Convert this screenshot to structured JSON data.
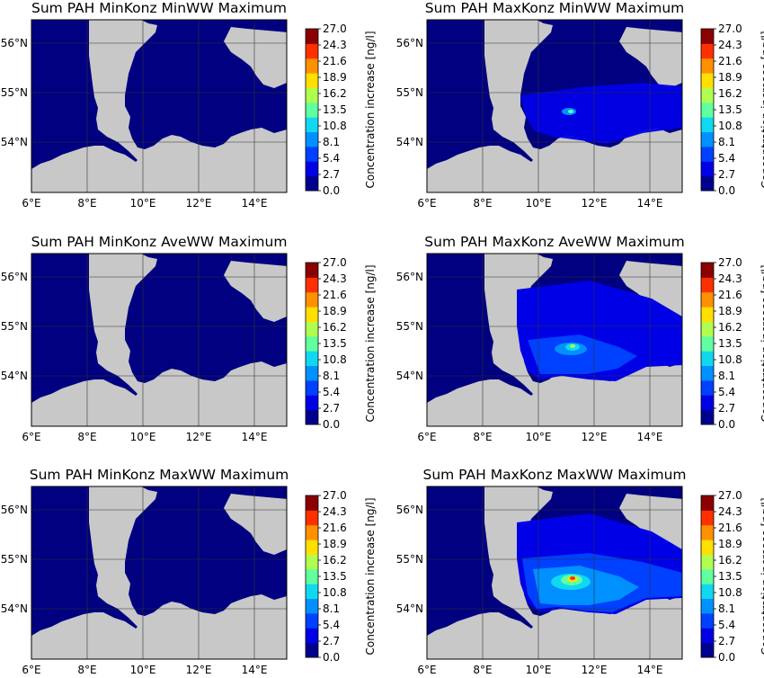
{
  "figure": {
    "panels": [
      {
        "title": "Sum PAH MinKonz MinWW Maximum",
        "plume": "none"
      },
      {
        "title": "Sum PAH MaxKonz MinWW Maximum",
        "plume": "low"
      },
      {
        "title": "Sum PAH MinKonz AveWW Maximum",
        "plume": "none"
      },
      {
        "title": "Sum PAH MaxKonz AveWW Maximum",
        "plume": "medium"
      },
      {
        "title": "Sum PAH MinKonz MaxWW Maximum",
        "plume": "none"
      },
      {
        "title": "Sum PAH MaxKonz MaxWW Maximum",
        "plume": "high"
      }
    ],
    "x_ticks": [
      "6°E",
      "8°E",
      "10°E",
      "12°E",
      "14°E"
    ],
    "y_ticks": [
      "56°N",
      "55°N",
      "54°N"
    ],
    "colorbar": {
      "label": "Concentration increase [ng/l]",
      "ticks": [
        "0.0",
        "2.7",
        "5.4",
        "8.1",
        "10.8",
        "13.5",
        "16.2",
        "18.9",
        "21.6",
        "24.3",
        "27.0"
      ],
      "colors": [
        "#00008f",
        "#0000e6",
        "#0040ff",
        "#0090ff",
        "#10d8f0",
        "#60ffa0",
        "#b0ff50",
        "#ffe000",
        "#ff9000",
        "#ff3000",
        "#8b0000"
      ]
    },
    "land_color": "#c8c8c8",
    "sea_color": "#000080"
  }
}
